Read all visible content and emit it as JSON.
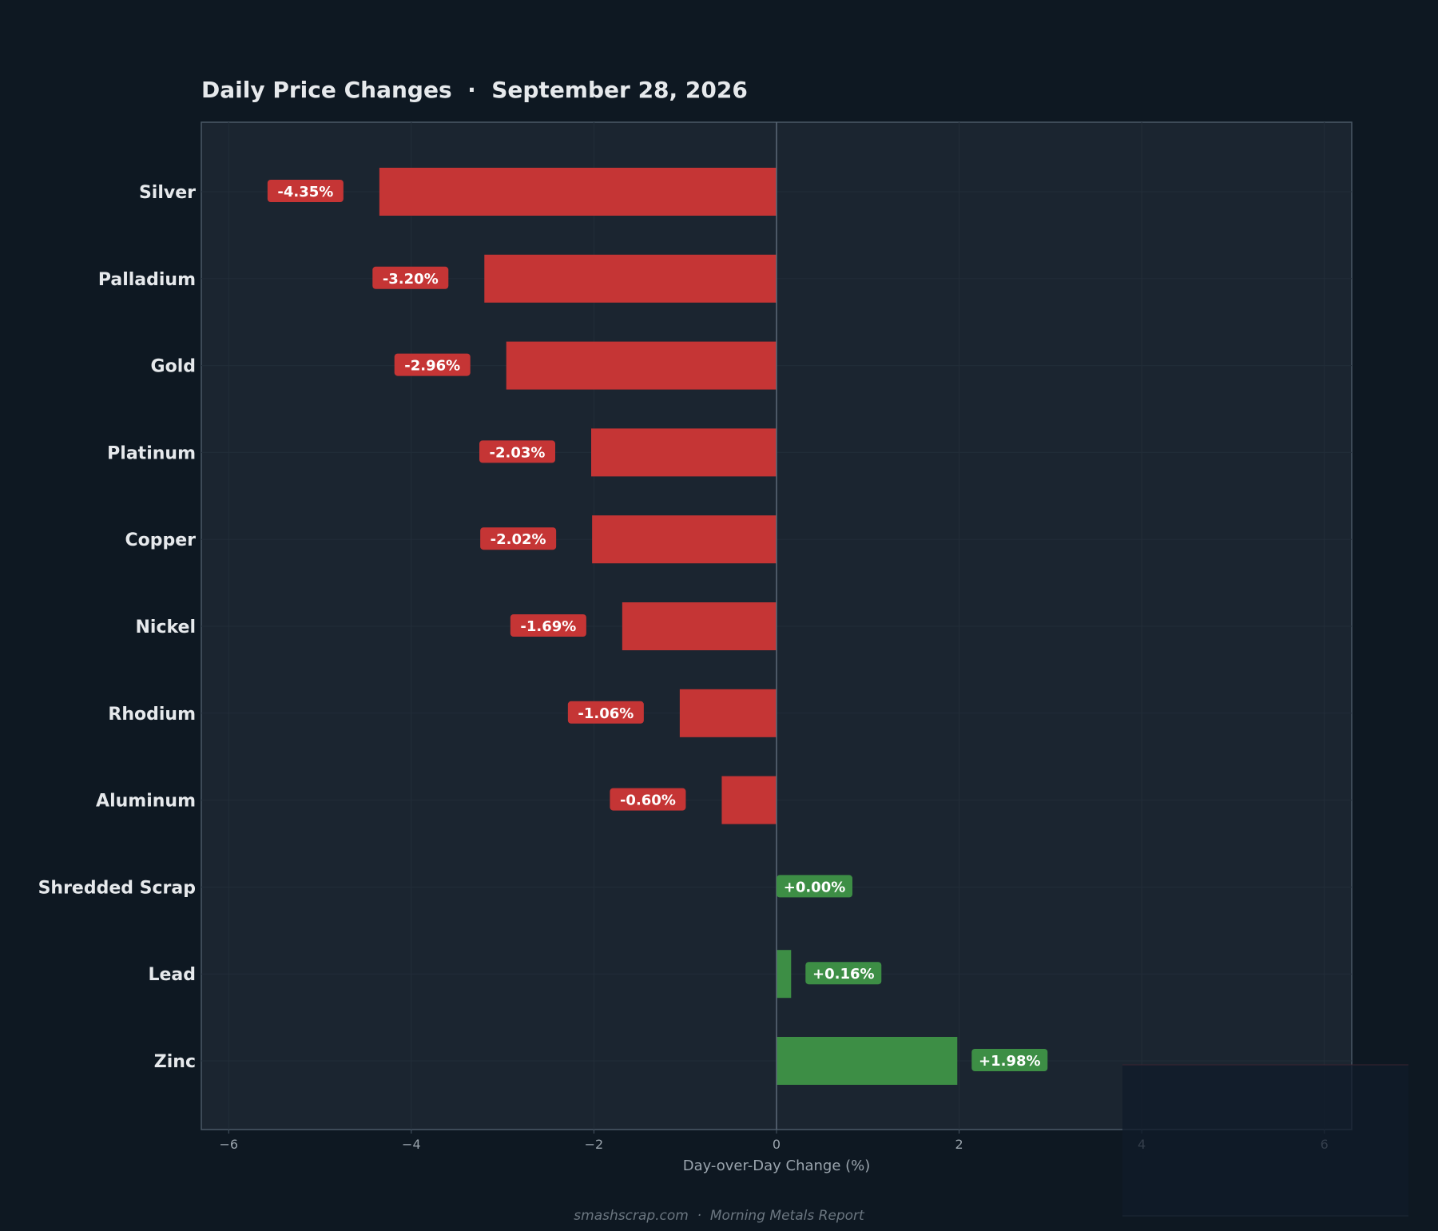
{
  "chart_data": {
    "type": "bar",
    "orientation": "horizontal",
    "title": "Daily Price Changes  ·  September 28, 2026",
    "xlabel": "Day-over-Day Change (%)",
    "ylabel": "",
    "categories": [
      "Silver",
      "Palladium",
      "Gold",
      "Platinum",
      "Copper",
      "Nickel",
      "Rhodium",
      "Aluminum",
      "Shredded Scrap",
      "Lead",
      "Zinc"
    ],
    "values": [
      -4.35,
      -3.2,
      -2.96,
      -2.03,
      -2.02,
      -1.69,
      -1.06,
      -0.6,
      0.0,
      0.16,
      1.98
    ],
    "value_labels": [
      "-4.35%",
      "-3.20%",
      "-2.96%",
      "-2.03%",
      "-2.02%",
      "-1.69%",
      "-1.06%",
      "-0.60%",
      "+0.00%",
      "+0.16%",
      "+1.98%"
    ],
    "xlim": [
      -6.3,
      6.3
    ],
    "xticks": [
      -6,
      -4,
      -2,
      0,
      2,
      4,
      6
    ],
    "xtick_labels": [
      "−6",
      "−4",
      "−2",
      "0",
      "2",
      "4",
      "6"
    ],
    "grid": true,
    "legend": "none",
    "colors": {
      "negative": "#c53535",
      "positive": "#3d8e45",
      "background": "#0e1822",
      "plot_background": "#1b2530",
      "axis": "#4a5866",
      "text": "#e6e9ec",
      "muted_text": "#9aa4ad"
    }
  },
  "footer": {
    "text": "smashscrap.com  ·  Morning Metals Report"
  }
}
